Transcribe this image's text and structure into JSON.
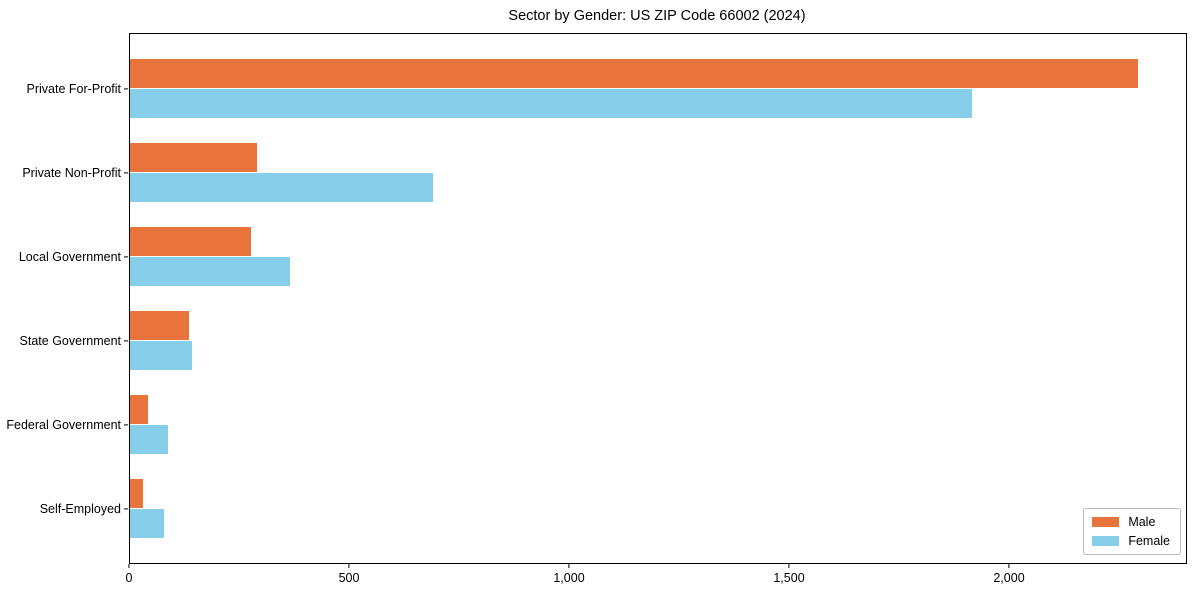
{
  "chart_data": {
    "type": "bar",
    "orientation": "horizontal",
    "title": "Sector by Gender: US ZIP Code 66002 (2024)",
    "categories": [
      "Private For-Profit",
      "Private Non-Profit",
      "Local Government",
      "State Government",
      "Federal Government",
      "Self-Employed"
    ],
    "series": [
      {
        "name": "Male",
        "color": "#e8743c",
        "values": [
          2290,
          288,
          275,
          135,
          40,
          30
        ]
      },
      {
        "name": "Female",
        "color": "#87ceeb",
        "values": [
          1913,
          689,
          364,
          140,
          87,
          77
        ]
      }
    ],
    "xlabel": "",
    "ylabel": "",
    "xlim": [
      0,
      2400
    ],
    "xticks": [
      {
        "value": 0,
        "label": "0"
      },
      {
        "value": 500,
        "label": "500"
      },
      {
        "value": 1000,
        "label": "1,000"
      },
      {
        "value": 1500,
        "label": "1,500"
      },
      {
        "value": 2000,
        "label": "2,000"
      }
    ],
    "grid": false,
    "legend": {
      "position": "lower right",
      "entries": [
        {
          "label": "Male",
          "color": "#e8743c"
        },
        {
          "label": "Female",
          "color": "#87ceeb"
        }
      ]
    }
  }
}
